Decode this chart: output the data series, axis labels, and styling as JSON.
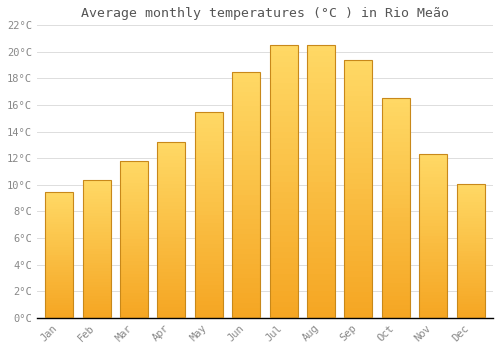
{
  "months": [
    "Jan",
    "Feb",
    "Mar",
    "Apr",
    "May",
    "Jun",
    "Jul",
    "Aug",
    "Sep",
    "Oct",
    "Nov",
    "Dec"
  ],
  "values": [
    9.5,
    10.4,
    11.8,
    13.2,
    15.5,
    18.5,
    20.5,
    20.5,
    19.4,
    16.5,
    12.3,
    10.1
  ],
  "bar_color_bottom": "#F5A623",
  "bar_color_top": "#FFD966",
  "bar_edge_color": "#C8881A",
  "title": "Average monthly temperatures (°C ) in Rio Meão",
  "title_fontsize": 9.5,
  "ylim": [
    0,
    22
  ],
  "yticks": [
    0,
    2,
    4,
    6,
    8,
    10,
    12,
    14,
    16,
    18,
    20,
    22
  ],
  "background_color": "#FFFFFF",
  "grid_color": "#DDDDDD",
  "tick_label_color": "#888888",
  "title_color": "#555555",
  "font_family": "monospace",
  "bar_width": 0.75
}
